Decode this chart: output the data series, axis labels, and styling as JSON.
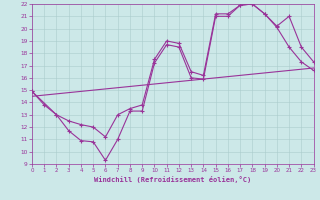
{
  "xlabel": "Windchill (Refroidissement éolien,°C)",
  "bg_color": "#cce8e8",
  "line_color": "#993399",
  "xlim": [
    0,
    23
  ],
  "ylim": [
    9,
    22
  ],
  "line1_x": [
    0,
    1,
    2,
    3,
    4,
    5,
    6,
    7,
    8,
    9,
    10,
    11,
    12,
    13,
    14,
    15,
    16,
    17,
    18,
    19,
    20,
    21,
    22,
    23
  ],
  "line1_y": [
    14.9,
    13.8,
    13.0,
    11.7,
    10.9,
    10.8,
    9.3,
    11.0,
    13.3,
    13.3,
    17.2,
    18.7,
    18.5,
    16.0,
    15.9,
    21.0,
    21.0,
    21.9,
    22.0,
    21.2,
    20.1,
    18.5,
    17.3,
    16.6
  ],
  "line2_x": [
    0,
    2,
    3,
    4,
    5,
    6,
    7,
    8,
    9,
    10,
    11,
    12,
    13,
    14,
    15,
    16,
    17,
    18,
    19,
    20,
    21,
    22,
    23
  ],
  "line2_y": [
    14.9,
    13.0,
    12.5,
    12.2,
    12.0,
    11.2,
    13.0,
    13.5,
    13.8,
    17.5,
    19.0,
    18.8,
    16.5,
    16.2,
    21.2,
    21.2,
    21.9,
    22.0,
    21.2,
    20.2,
    21.0,
    18.5,
    17.3
  ],
  "line3_x": [
    0,
    23
  ],
  "line3_y": [
    14.5,
    16.8
  ]
}
